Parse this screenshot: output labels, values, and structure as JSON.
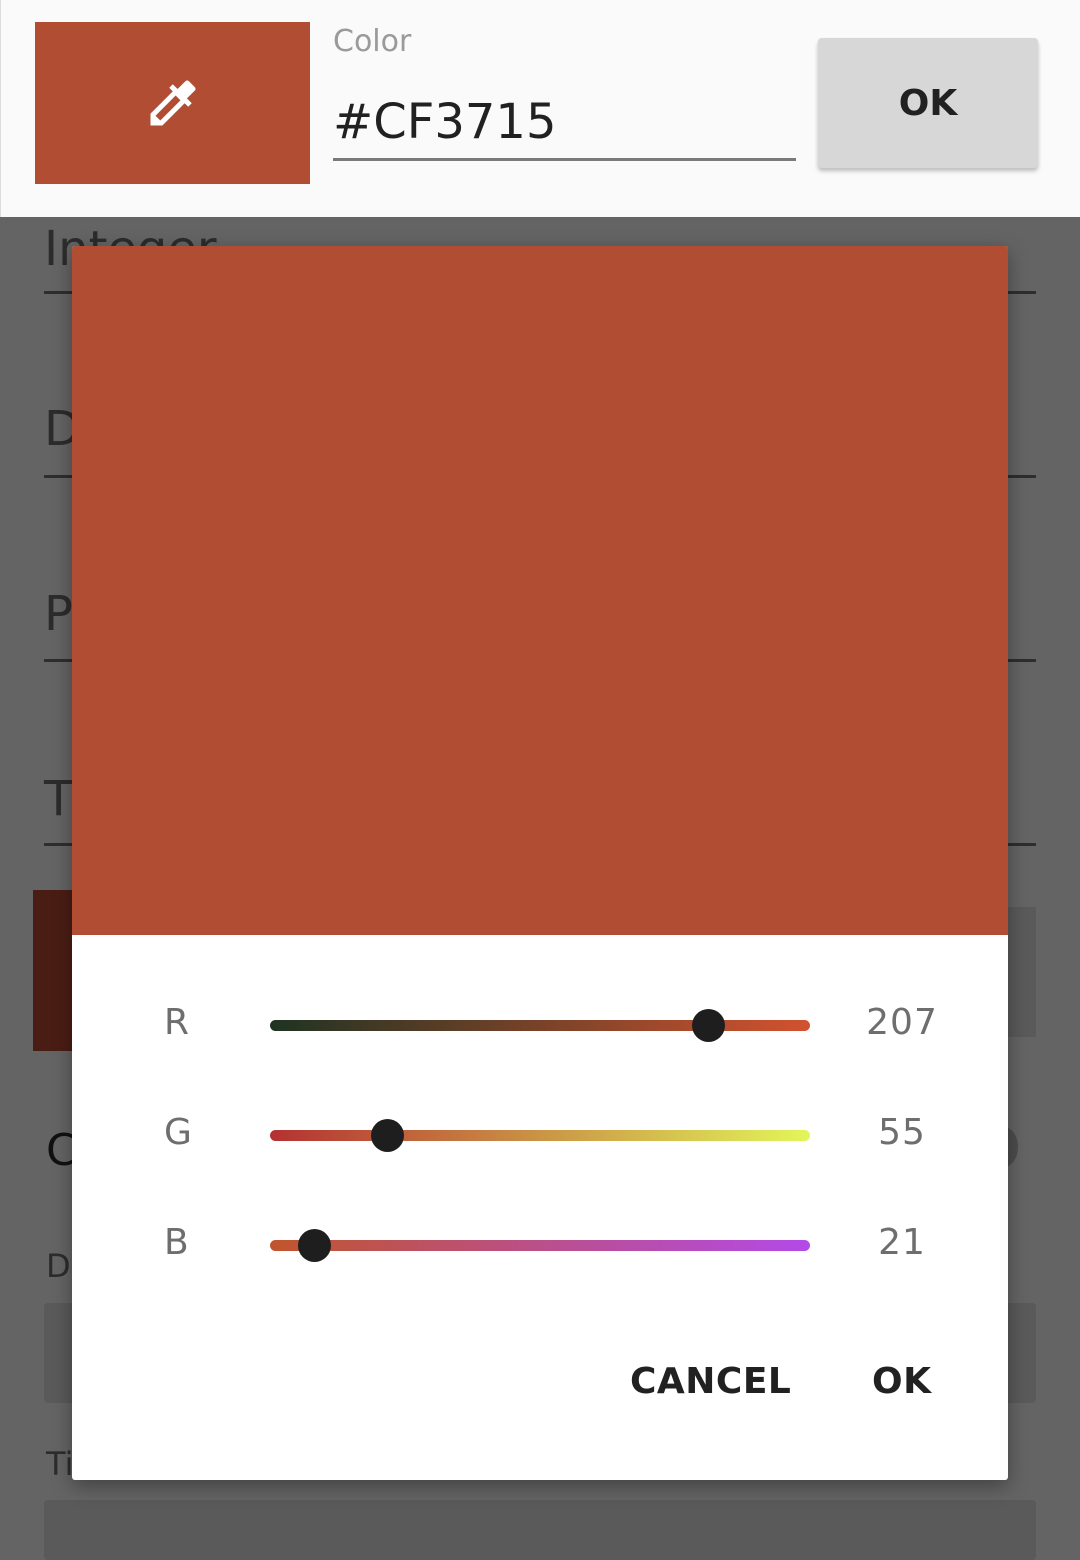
{
  "top_bar": {
    "color_label": "Color",
    "color_value": "#CF3715",
    "ok_label": "OK",
    "swatch_color": "#b14d33"
  },
  "background_form": {
    "fields": [
      "Integer",
      "D",
      "P",
      "T"
    ],
    "c_text": "C",
    "da_text": "Da",
    "ti_text": "Ti"
  },
  "dialog": {
    "preview_color": "#b14d33",
    "channels": [
      {
        "label": "R",
        "value": "207",
        "fraction": 0.811,
        "gradient": [
          "#1f3322",
          "#d2522f"
        ]
      },
      {
        "label": "G",
        "value": "55",
        "fraction": 0.216,
        "gradient": [
          "#b43131",
          "#e2f65a"
        ]
      },
      {
        "label": "B",
        "value": "21",
        "fraction": 0.082,
        "gradient": [
          "#c0552c",
          "#b44ae8"
        ]
      }
    ],
    "cancel_label": "CANCEL",
    "ok_label": "OK"
  }
}
